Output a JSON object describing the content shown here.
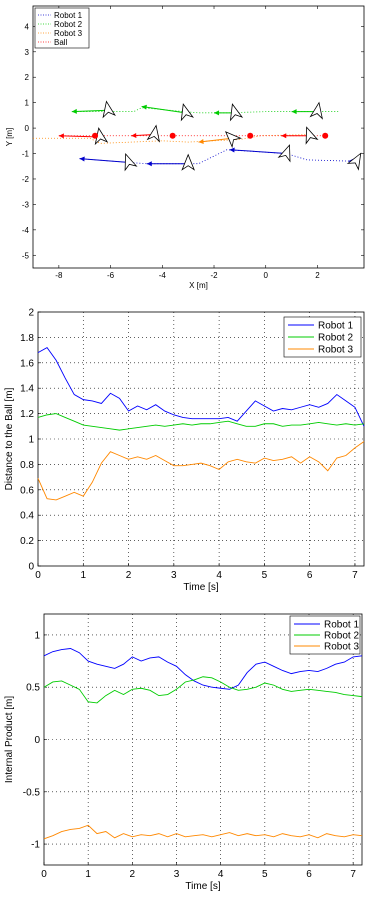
{
  "chart_data": [
    {
      "type": "scatter",
      "title": "",
      "xlabel": "X [m]",
      "ylabel": "Y [m]",
      "xlim": [
        -9,
        3.8
      ],
      "ylim": [
        -5.5,
        4.8
      ],
      "xticks": [
        -8,
        -6,
        -4,
        -2,
        0,
        2
      ],
      "xtick_labels": [
        "-8",
        "-6",
        "-4",
        "-2",
        "0",
        "2"
      ],
      "yticks": [
        -5,
        -4,
        -3,
        -2,
        -1,
        0,
        1,
        2,
        3,
        4
      ],
      "ytick_labels": [
        "-5",
        "-4",
        "-3",
        "-2",
        "-1",
        "0",
        "1",
        "2",
        "3",
        "4"
      ],
      "grid": false,
      "legend_position": "top-left",
      "series": [
        {
          "name": "Robot 1",
          "color": "#0000cc",
          "x": [
            -7.2,
            -5.3,
            -4.6,
            -2.6,
            -1.5,
            0.8,
            1.6,
            3.3
          ],
          "y": [
            -1.2,
            -1.35,
            -1.4,
            -1.4,
            -0.85,
            -1.0,
            -1.25,
            -1.3
          ]
        },
        {
          "name": "Robot 2",
          "color": "#00cc00",
          "x": [
            -7.4,
            -5.1,
            -4.8,
            -2.6,
            -1.5,
            0.1,
            0.8,
            2.8
          ],
          "y": [
            0.65,
            0.65,
            0.8,
            0.6,
            0.6,
            0.65,
            0.65,
            0.65
          ]
        },
        {
          "name": "Robot 3",
          "color": "#ff8800",
          "x": [
            -9.0,
            -6.8,
            -6.4,
            -4.0,
            -3.0,
            -1.0,
            -0.2,
            1.8
          ],
          "y": [
            -0.4,
            -0.4,
            -0.6,
            -0.5,
            -0.55,
            -0.45,
            -0.3,
            -0.25
          ]
        },
        {
          "name": "Ball",
          "color": "#ff0000",
          "x": [
            -8.0,
            -6.6,
            -5.0,
            -3.6,
            -2.0,
            -0.6,
            0.9,
            2.3
          ],
          "y": [
            -0.3,
            -0.3,
            -0.3,
            -0.3,
            -0.3,
            -0.3,
            -0.3,
            -0.3
          ]
        }
      ],
      "ball_markers": {
        "x": [
          -6.6,
          -3.6,
          -0.6,
          2.3
        ],
        "y": [
          -0.3,
          -0.3,
          -0.3,
          -0.3
        ]
      },
      "robot_poses": [
        {
          "x": -6.1,
          "y": 0.7,
          "heading": -10,
          "arrow_to_x": -7.5,
          "arrow_to_y": 0.65,
          "color": "#00cc00"
        },
        {
          "x": -6.4,
          "y": -0.35,
          "heading": -10,
          "arrow_to_x": -8.0,
          "arrow_to_y": -0.3,
          "color": "#ff0000"
        },
        {
          "x": -5.3,
          "y": -1.35,
          "heading": -20,
          "arrow_to_x": -7.2,
          "arrow_to_y": -1.2,
          "color": "#0000cc"
        },
        {
          "x": -3.1,
          "y": 0.6,
          "heading": -15,
          "arrow_to_x": -4.8,
          "arrow_to_y": 0.85,
          "color": "#00cc00"
        },
        {
          "x": -4.3,
          "y": -0.25,
          "heading": 10,
          "arrow_to_x": -5.2,
          "arrow_to_y": -0.3,
          "color": "#ff0000"
        },
        {
          "x": -3.0,
          "y": -1.4,
          "heading": 0,
          "arrow_to_x": -4.6,
          "arrow_to_y": -1.4,
          "color": "#0000cc"
        },
        {
          "x": -1.2,
          "y": 0.6,
          "heading": -15,
          "arrow_to_x": -2.0,
          "arrow_to_y": 0.6,
          "color": "#00cc00"
        },
        {
          "x": -1.3,
          "y": -0.4,
          "heading": -45,
          "arrow_to_x": -2.6,
          "arrow_to_y": -0.55,
          "color": "#ff8800"
        },
        {
          "x": 0.8,
          "y": -1.0,
          "heading": 20,
          "arrow_to_x": -1.4,
          "arrow_to_y": -0.85,
          "color": "#0000cc"
        },
        {
          "x": 2.0,
          "y": 0.65,
          "heading": 10,
          "arrow_to_x": 1.0,
          "arrow_to_y": 0.65,
          "color": "#00cc00"
        },
        {
          "x": 1.7,
          "y": -0.3,
          "heading": -20,
          "arrow_to_x": 0.6,
          "arrow_to_y": -0.3,
          "color": "#ff0000"
        },
        {
          "x": 3.5,
          "y": -1.3,
          "heading": 30,
          "arrow_to_x": 3.2,
          "arrow_to_y": -1.3,
          "color": "#0000cc"
        }
      ],
      "legend": [
        "Robot 1",
        "Robot 2",
        "Robot 3",
        "Ball"
      ]
    },
    {
      "type": "line",
      "title": "",
      "xlabel": "Time  [s]",
      "ylabel": "Distance to the Ball  [m]",
      "xlim": [
        0,
        7.2
      ],
      "ylim": [
        0,
        2
      ],
      "xticks": [
        0,
        1,
        2,
        3,
        4,
        5,
        6,
        7
      ],
      "yticks": [
        0,
        0.2,
        0.4,
        0.6,
        0.8,
        1,
        1.2,
        1.4,
        1.6,
        1.8,
        2
      ],
      "ytick_labels": [
        "0",
        "0.2",
        "0.4",
        "0.6",
        "0.8",
        "1",
        "1.2",
        "1.4",
        "1.6",
        "1.8",
        "2"
      ],
      "grid": true,
      "legend_position": "top-right",
      "x": [
        0,
        0.2,
        0.4,
        0.6,
        0.8,
        1.0,
        1.2,
        1.4,
        1.6,
        1.8,
        2.0,
        2.2,
        2.4,
        2.6,
        2.8,
        3.0,
        3.2,
        3.4,
        3.6,
        3.8,
        4.0,
        4.2,
        4.4,
        4.6,
        4.8,
        5.0,
        5.2,
        5.4,
        5.6,
        5.8,
        6.0,
        6.2,
        6.4,
        6.6,
        6.8,
        7.0,
        7.2
      ],
      "series": [
        {
          "name": "Robot 1",
          "color": "#0000ff",
          "values": [
            1.68,
            1.72,
            1.62,
            1.48,
            1.35,
            1.31,
            1.3,
            1.28,
            1.36,
            1.32,
            1.22,
            1.26,
            1.23,
            1.27,
            1.22,
            1.19,
            1.17,
            1.16,
            1.16,
            1.16,
            1.16,
            1.17,
            1.14,
            1.22,
            1.3,
            1.26,
            1.22,
            1.24,
            1.23,
            1.25,
            1.27,
            1.25,
            1.28,
            1.35,
            1.3,
            1.25,
            1.1
          ]
        },
        {
          "name": "Robot 2",
          "color": "#00cc00",
          "values": [
            1.17,
            1.19,
            1.2,
            1.17,
            1.14,
            1.11,
            1.1,
            1.09,
            1.08,
            1.07,
            1.08,
            1.09,
            1.1,
            1.11,
            1.1,
            1.11,
            1.12,
            1.11,
            1.12,
            1.12,
            1.13,
            1.14,
            1.12,
            1.1,
            1.1,
            1.12,
            1.12,
            1.1,
            1.11,
            1.11,
            1.12,
            1.13,
            1.12,
            1.11,
            1.12,
            1.11,
            1.12
          ]
        },
        {
          "name": "Robot 3",
          "color": "#ff8800",
          "values": [
            0.69,
            0.53,
            0.52,
            0.55,
            0.58,
            0.55,
            0.66,
            0.81,
            0.9,
            0.87,
            0.84,
            0.86,
            0.84,
            0.87,
            0.83,
            0.79,
            0.79,
            0.8,
            0.81,
            0.79,
            0.76,
            0.82,
            0.84,
            0.82,
            0.81,
            0.85,
            0.83,
            0.84,
            0.86,
            0.81,
            0.86,
            0.82,
            0.75,
            0.85,
            0.87,
            0.93,
            0.98
          ]
        }
      ],
      "legend": [
        "Robot 1",
        "Robot 2",
        "Robot 3"
      ]
    },
    {
      "type": "line",
      "title": "",
      "xlabel": "Time  [s]",
      "ylabel": "Internal Product  [m]",
      "xlim": [
        0,
        7.2
      ],
      "ylim": [
        -1.2,
        1.2
      ],
      "xticks": [
        0,
        1,
        2,
        3,
        4,
        5,
        6,
        7
      ],
      "yticks": [
        -1,
        -0.5,
        0,
        0.5,
        1
      ],
      "ytick_labels": [
        "-1",
        "-0.5",
        "0",
        "0.5",
        "1"
      ],
      "grid": true,
      "legend_position": "top-right",
      "x": [
        0,
        0.2,
        0.4,
        0.6,
        0.8,
        1.0,
        1.2,
        1.4,
        1.6,
        1.8,
        2.0,
        2.2,
        2.4,
        2.6,
        2.8,
        3.0,
        3.2,
        3.4,
        3.6,
        3.8,
        4.0,
        4.2,
        4.4,
        4.6,
        4.8,
        5.0,
        5.2,
        5.4,
        5.6,
        5.8,
        6.0,
        6.2,
        6.4,
        6.6,
        6.8,
        7.0,
        7.2
      ],
      "series": [
        {
          "name": "Robot 1",
          "color": "#0000ff",
          "values": [
            0.8,
            0.84,
            0.86,
            0.87,
            0.83,
            0.75,
            0.72,
            0.7,
            0.68,
            0.72,
            0.79,
            0.75,
            0.78,
            0.79,
            0.74,
            0.7,
            0.62,
            0.56,
            0.52,
            0.5,
            0.49,
            0.48,
            0.52,
            0.64,
            0.72,
            0.74,
            0.7,
            0.66,
            0.63,
            0.65,
            0.66,
            0.65,
            0.68,
            0.72,
            0.74,
            0.79,
            0.8
          ]
        },
        {
          "name": "Robot 2",
          "color": "#00cc00",
          "values": [
            0.5,
            0.55,
            0.56,
            0.52,
            0.48,
            0.36,
            0.35,
            0.42,
            0.47,
            0.43,
            0.48,
            0.49,
            0.47,
            0.42,
            0.43,
            0.48,
            0.55,
            0.57,
            0.6,
            0.59,
            0.55,
            0.5,
            0.47,
            0.48,
            0.5,
            0.54,
            0.52,
            0.48,
            0.46,
            0.47,
            0.48,
            0.47,
            0.46,
            0.45,
            0.43,
            0.42,
            0.41
          ]
        },
        {
          "name": "Robot 3",
          "color": "#ff8800",
          "values": [
            -0.95,
            -0.92,
            -0.88,
            -0.86,
            -0.85,
            -0.82,
            -0.9,
            -0.88,
            -0.94,
            -0.9,
            -0.93,
            -0.91,
            -0.92,
            -0.9,
            -0.93,
            -0.9,
            -0.93,
            -0.92,
            -0.91,
            -0.93,
            -0.91,
            -0.89,
            -0.92,
            -0.9,
            -0.92,
            -0.91,
            -0.93,
            -0.9,
            -0.92,
            -0.93,
            -0.91,
            -0.94,
            -0.9,
            -0.92,
            -0.93,
            -0.91,
            -0.92
          ]
        }
      ],
      "legend": [
        "Robot 1",
        "Robot 2",
        "Robot 3"
      ]
    }
  ]
}
